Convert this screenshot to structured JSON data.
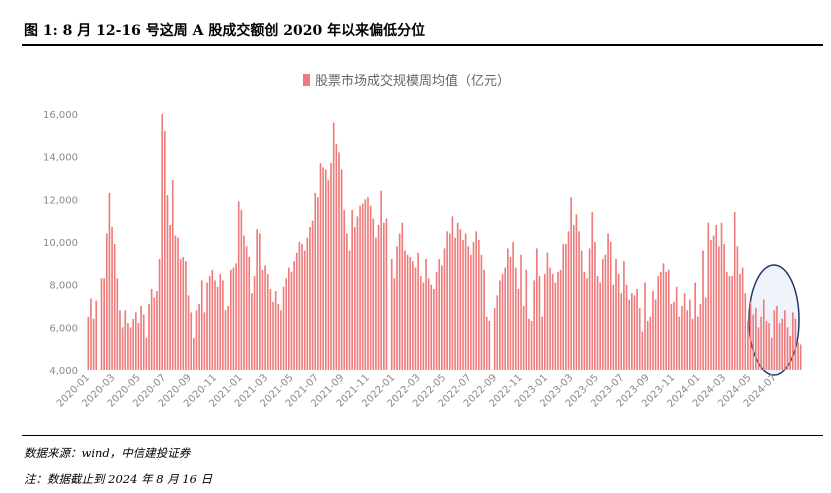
{
  "header": {
    "title": "图 1: 8 月 12-16 号这周 A 股成交额创 2020 年以来偏低分位"
  },
  "footer": {
    "source": "数据来源：wind，中信建投证券",
    "note": "注：数据截止到 2024 年 8 月 16 日"
  },
  "colors": {
    "bar": "#ee7b7b",
    "ellipse_fill": "#e4ebf6",
    "ellipse_stroke": "#1f3b68"
  },
  "chart_data": {
    "type": "bar",
    "title": "",
    "legend": "股票市场成交规模周均值（亿元）",
    "legend_position": "top-center",
    "xlabel": "",
    "ylabel": "",
    "ylim": [
      4000,
      16000
    ],
    "yticks": [
      4000,
      6000,
      8000,
      10000,
      12000,
      14000,
      16000
    ],
    "ytick_labels": [
      "4,000",
      "6,000",
      "8,000",
      "10,000",
      "12,000",
      "14,000",
      "16,000"
    ],
    "xtick_labels": [
      "2020-01",
      "2020-03",
      "2020-05",
      "2020-07",
      "2020-09",
      "2020-11",
      "2021-01",
      "2021-03",
      "2021-05",
      "2021-07",
      "2021-09",
      "2021-11",
      "2022-01",
      "2022-03",
      "2022-05",
      "2022-07",
      "2022-09",
      "2022-11",
      "2023-01",
      "2023-03",
      "2023-05",
      "2023-07",
      "2023-09",
      "2023-11",
      "2024-01",
      "2024-03",
      "2024-05",
      "2024-07"
    ],
    "annotation": "ellipse highlighting recent weeks",
    "series": [
      {
        "name": "股票市场成交规模周均值（亿元）",
        "values": [
          6500,
          7350,
          6400,
          7250,
          null,
          8300,
          8300,
          10400,
          12300,
          10700,
          9900,
          8300,
          6800,
          6000,
          6800,
          6200,
          6000,
          6400,
          6700,
          6200,
          7000,
          6600,
          5500,
          7100,
          7800,
          7400,
          7700,
          9200,
          16000,
          15200,
          12200,
          10800,
          12900,
          10300,
          10200,
          9200,
          9300,
          9100,
          7500,
          6700,
          5500,
          6800,
          7100,
          8200,
          6700,
          8100,
          8400,
          8700,
          8200,
          7900,
          8500,
          8200,
          6800,
          7000,
          8700,
          8800,
          9000,
          11900,
          11500,
          10300,
          9800,
          9300,
          7600,
          8400,
          10600,
          10400,
          8700,
          8900,
          8500,
          7800,
          7200,
          7700,
          7100,
          6800,
          7900,
          8300,
          8800,
          8600,
          9100,
          9500,
          10000,
          9900,
          9600,
          10200,
          10700,
          11000,
          12300,
          12100,
          13700,
          13500,
          13400,
          12900,
          13700,
          15600,
          14600,
          14200,
          13400,
          11500,
          10400,
          9600,
          11500,
          10700,
          11200,
          11700,
          11800,
          12000,
          12100,
          11700,
          11100,
          10200,
          10800,
          12400,
          10900,
          11100,
          null,
          9200,
          8300,
          9800,
          10400,
          10900,
          9600,
          9400,
          9300,
          9100,
          8800,
          9500,
          8400,
          8100,
          9200,
          8300,
          8000,
          7800,
          8600,
          9200,
          8900,
          9700,
          10500,
          10400,
          11200,
          10200,
          10900,
          10600,
          10100,
          10400,
          9800,
          9400,
          10000,
          10500,
          10100,
          9400,
          8700,
          6500,
          6300,
          null,
          6900,
          7500,
          8200,
          8500,
          8800,
          9700,
          9300,
          10000,
          8800,
          7800,
          9400,
          7000,
          8700,
          6400,
          6300,
          8200,
          9700,
          8400,
          6500,
          8500,
          9500,
          8800,
          8500,
          8100,
          8600,
          8700,
          9900,
          9900,
          10500,
          12100,
          10800,
          11300,
          10500,
          9600,
          8600,
          8300,
          9700,
          11400,
          10000,
          8400,
          8100,
          9200,
          9400,
          10400,
          10000,
          8000,
          9200,
          8500,
          7600,
          9100,
          8000,
          7300,
          7600,
          7500,
          7800,
          6900,
          5800,
          8100,
          6300,
          6500,
          7700,
          7300,
          8400,
          8600,
          9000,
          8600,
          8700,
          7100,
          7200,
          7900,
          6500,
          7000,
          7600,
          6800,
          7300,
          6400,
          8100,
          6500,
          7100,
          9600,
          7400,
          10900,
          10100,
          10300,
          10800,
          9800,
          10900,
          9900,
          8600,
          8400,
          8400,
          11400,
          9800,
          8500,
          8800,
          7600,
          6300,
          7200,
          6600,
          6900,
          6000,
          6500,
          7300,
          6300,
          6200,
          5500,
          6800,
          7000,
          6200,
          6400,
          6800,
          6000,
          5600,
          6700,
          6400,
          5300,
          5200
        ]
      }
    ]
  }
}
